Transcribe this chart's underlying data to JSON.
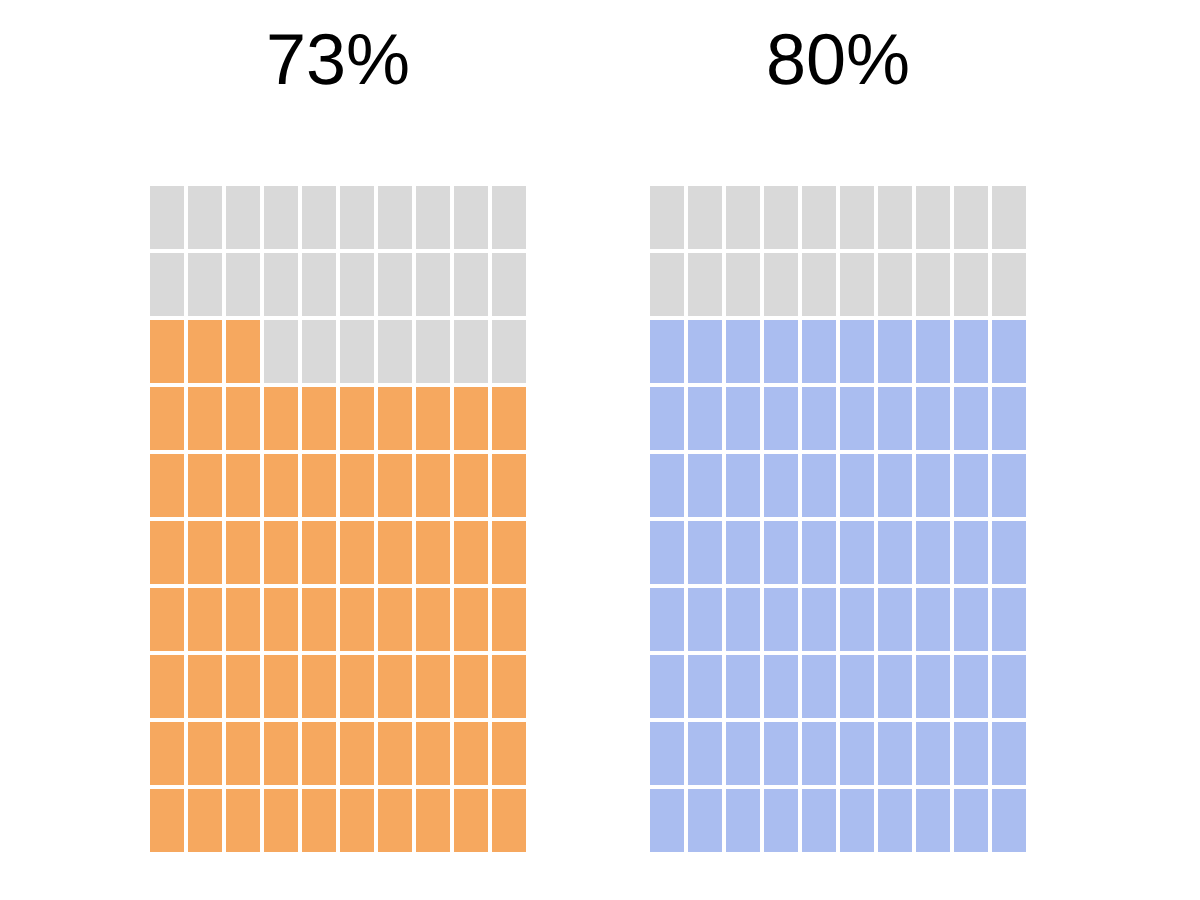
{
  "chart_data": [
    {
      "type": "other",
      "values": [
        73
      ],
      "value_labels": [
        "73%"
      ],
      "color": "#f6a85f"
    },
    {
      "type": "other",
      "values": [
        80
      ],
      "value_labels": [
        "80%"
      ],
      "color": "#aabdf0"
    }
  ]
}
